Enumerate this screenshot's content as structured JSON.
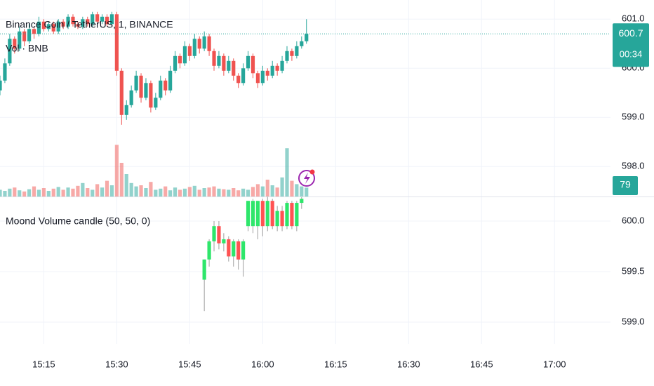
{
  "chart_data": [
    {
      "type": "candlestick",
      "title": "Binance Coin / TetherUS, 1, BINANCE",
      "volume_label": "Vol · BNB",
      "up_color": "#26a69a",
      "down_color": "#ef5350",
      "volume_opacity": 0.5,
      "x": [
        906,
        907,
        908,
        909,
        910,
        911,
        912,
        913,
        914,
        915,
        916,
        917,
        918,
        919,
        920,
        921,
        922,
        923,
        924,
        925,
        926,
        927,
        928,
        929,
        930,
        931,
        932,
        933,
        934,
        935,
        936,
        937,
        938,
        939,
        940,
        941,
        942,
        943,
        944,
        945,
        946,
        947,
        948,
        949,
        950,
        951,
        952,
        953,
        954,
        955,
        956,
        957,
        958,
        959,
        960,
        961,
        962,
        963,
        964,
        965,
        966,
        967,
        968,
        969
      ],
      "open": [
        599.55,
        599.75,
        600.1,
        600.6,
        600.4,
        600.75,
        600.55,
        600.8,
        600.7,
        600.95,
        600.8,
        600.9,
        600.75,
        600.95,
        600.85,
        601.05,
        600.9,
        600.85,
        601.0,
        600.9,
        601.1,
        600.95,
        601.05,
        600.9,
        601.1,
        599.95,
        599.05,
        599.25,
        599.55,
        599.85,
        599.4,
        599.7,
        599.2,
        599.4,
        599.75,
        599.55,
        599.95,
        600.25,
        600.1,
        600.45,
        600.25,
        600.6,
        600.4,
        600.65,
        600.35,
        600.05,
        600.25,
        599.95,
        600.15,
        599.85,
        599.7,
        600.0,
        600.25,
        599.9,
        599.7,
        599.95,
        599.85,
        600.05,
        599.95,
        600.15,
        600.35,
        600.25,
        600.45,
        600.55
      ],
      "high": [
        599.85,
        600.2,
        600.7,
        600.65,
        600.85,
        600.8,
        600.9,
        600.85,
        601.05,
        601.0,
        600.95,
        600.95,
        601.0,
        601.0,
        601.1,
        601.1,
        600.95,
        601.05,
        601.05,
        601.15,
        601.15,
        601.1,
        601.1,
        601.15,
        601.15,
        600.0,
        599.35,
        599.65,
        599.95,
        599.9,
        599.8,
        599.75,
        599.5,
        599.85,
        599.8,
        600.05,
        600.35,
        600.3,
        600.55,
        600.5,
        600.7,
        600.65,
        600.75,
        600.7,
        600.4,
        600.35,
        600.3,
        600.25,
        600.2,
        599.9,
        600.1,
        600.35,
        600.3,
        599.95,
        600.05,
        600.0,
        600.15,
        600.1,
        600.25,
        600.45,
        600.4,
        600.55,
        600.65,
        601.0
      ],
      "low": [
        599.45,
        599.7,
        600.05,
        600.3,
        600.35,
        600.45,
        600.5,
        600.6,
        600.65,
        600.75,
        600.75,
        600.7,
        600.7,
        600.8,
        600.8,
        600.85,
        600.8,
        600.8,
        600.85,
        600.85,
        600.9,
        600.9,
        600.85,
        600.85,
        599.85,
        598.85,
        598.95,
        599.2,
        599.5,
        599.3,
        599.35,
        599.1,
        599.15,
        599.35,
        599.45,
        599.5,
        599.9,
        600.0,
        600.05,
        600.15,
        600.2,
        600.3,
        600.35,
        600.25,
        599.95,
        600.0,
        599.85,
        599.9,
        599.75,
        599.6,
        599.65,
        599.95,
        599.8,
        599.6,
        599.65,
        599.75,
        599.8,
        599.85,
        599.9,
        600.1,
        600.15,
        600.2,
        600.4,
        600.5
      ],
      "close": [
        599.75,
        600.1,
        600.6,
        600.4,
        600.75,
        600.55,
        600.8,
        600.7,
        600.95,
        600.8,
        600.9,
        600.75,
        600.95,
        600.85,
        601.05,
        600.9,
        600.85,
        601.0,
        600.9,
        601.1,
        600.95,
        601.05,
        600.9,
        601.1,
        599.95,
        599.05,
        599.25,
        599.55,
        599.85,
        599.4,
        599.7,
        599.2,
        599.4,
        599.75,
        599.55,
        599.95,
        600.25,
        600.1,
        600.45,
        600.25,
        600.6,
        600.4,
        600.65,
        600.35,
        600.05,
        600.25,
        599.95,
        600.15,
        599.85,
        599.7,
        600.0,
        600.25,
        599.9,
        599.7,
        599.95,
        599.85,
        600.05,
        599.95,
        600.15,
        600.35,
        600.25,
        600.45,
        600.55,
        600.7
      ],
      "volume": [
        60,
        50,
        70,
        80,
        55,
        45,
        65,
        90,
        60,
        75,
        50,
        70,
        85,
        60,
        80,
        70,
        95,
        120,
        75,
        60,
        110,
        80,
        140,
        100,
        460,
        300,
        200,
        120,
        90,
        100,
        75,
        130,
        60,
        70,
        90,
        55,
        80,
        60,
        70,
        85,
        95,
        60,
        75,
        80,
        90,
        70,
        65,
        60,
        75,
        55,
        70,
        60,
        85,
        110,
        90,
        150,
        100,
        80,
        170,
        430,
        140,
        110,
        90,
        79
      ],
      "vlim": [
        0,
        700
      ],
      "last_price": {
        "value": 600.7,
        "label": "600.7"
      },
      "countdown": "00:34",
      "xlim": [
        906,
        1031.5
      ],
      "ylim": [
        597.39,
        601.39
      ],
      "yticks": [
        {
          "value": 598,
          "label": "598.0"
        },
        {
          "value": 599,
          "label": "599.0"
        },
        {
          "value": 600,
          "label": "600.0"
        },
        {
          "value": 601,
          "label": "601.0"
        }
      ],
      "grid": true
    },
    {
      "type": "candlestick",
      "title": "Moond Volume candle (50, 50, 0)",
      "up_color": "#2ee66b",
      "down_color": "#ff5252",
      "wick_color": "#9e9e9e",
      "x": [
        948,
        949,
        950,
        951,
        952,
        953,
        954,
        955,
        956,
        957,
        958,
        959,
        960,
        961,
        962,
        963,
        964,
        965,
        966,
        967,
        968
      ],
      "open": [
        599.42,
        599.62,
        599.8,
        599.95,
        599.78,
        599.82,
        599.65,
        599.8,
        599.62,
        599.95,
        599.95,
        599.95,
        600.2,
        599.95,
        600.2,
        599.95,
        600.1,
        599.95,
        600.18,
        599.95,
        600.18
      ],
      "high": [
        599.62,
        599.82,
        600.0,
        600.0,
        599.88,
        599.85,
        599.82,
        599.82,
        599.82,
        600.2,
        600.22,
        600.2,
        600.22,
        600.25,
        600.22,
        600.15,
        600.15,
        600.2,
        600.2,
        600.2,
        600.24
      ],
      "low": [
        599.11,
        599.55,
        599.7,
        599.72,
        599.7,
        599.6,
        599.55,
        599.52,
        599.45,
        599.9,
        599.88,
        599.82,
        599.85,
        599.9,
        599.92,
        599.9,
        599.9,
        599.92,
        599.92,
        599.9,
        600.12
      ],
      "close": [
        599.62,
        599.8,
        599.95,
        599.78,
        599.82,
        599.65,
        599.8,
        599.62,
        599.8,
        600.2,
        600.2,
        600.2,
        599.95,
        600.2,
        599.95,
        600.1,
        599.95,
        600.18,
        599.95,
        600.18,
        600.22
      ],
      "xlim": [
        906,
        1031.5
      ],
      "ylim": [
        598.785,
        600.243
      ],
      "yticks": [
        {
          "value": 599,
          "label": "599.0"
        },
        {
          "value": 599.5,
          "label": "599.5"
        },
        {
          "value": 600,
          "label": "600.0"
        }
      ],
      "xticks": [
        {
          "value": 915,
          "label": "15:15"
        },
        {
          "value": 930,
          "label": "15:30"
        },
        {
          "value": 945,
          "label": "15:45"
        },
        {
          "value": 960,
          "label": "16:00"
        },
        {
          "value": 975,
          "label": "16:15"
        },
        {
          "value": 990,
          "label": "16:30"
        },
        {
          "value": 1005,
          "label": "16:45"
        },
        {
          "value": 1020,
          "label": "17:00"
        }
      ],
      "grid": true
    }
  ]
}
